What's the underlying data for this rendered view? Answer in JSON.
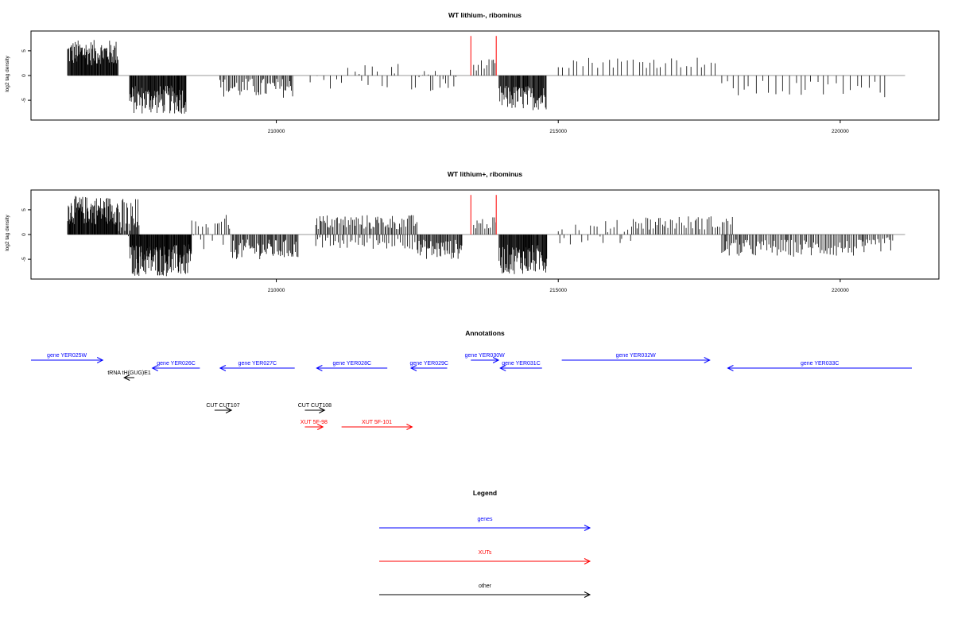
{
  "chart_data": [
    {
      "type": "bar",
      "title": "WT lithium-, ribominus",
      "ylabel": "log2 tag density",
      "xlim": [
        205650,
        221750
      ],
      "ylim": [
        -9,
        9
      ],
      "xticks": [
        210000,
        215000,
        220000
      ],
      "yticks": [
        -5,
        0,
        5
      ],
      "red_bars": [
        {
          "x": 213450,
          "y": 8
        },
        {
          "x": 213900,
          "y": 8
        }
      ],
      "regions": [
        {
          "start": 206300,
          "end": 207200,
          "min": 2,
          "max": 7.2,
          "step": 10
        },
        {
          "start": 206600,
          "end": 206950,
          "min": 1,
          "max": 6,
          "step": 40
        },
        {
          "start": 207400,
          "end": 208400,
          "min": -7.8,
          "max": -2,
          "step": 10
        },
        {
          "start": 209000,
          "end": 210300,
          "min": -4.5,
          "max": -0.5,
          "step": 25
        },
        {
          "start": 210600,
          "end": 211400,
          "min": -3,
          "max": 2,
          "step": 90
        },
        {
          "start": 211400,
          "end": 212200,
          "min": -3,
          "max": 3,
          "step": 70
        },
        {
          "start": 212400,
          "end": 213200,
          "min": -4,
          "max": 1.5,
          "step": 50
        },
        {
          "start": 213500,
          "end": 213900,
          "min": 1,
          "max": 3.3,
          "step": 40
        },
        {
          "start": 213950,
          "end": 214800,
          "min": -7,
          "max": -2,
          "step": 12
        },
        {
          "start": 215000,
          "end": 217800,
          "min": 1.5,
          "max": 3.8,
          "step": 90
        },
        {
          "start": 217900,
          "end": 220900,
          "min": -4.5,
          "max": -1,
          "step": 110
        }
      ]
    },
    {
      "type": "bar",
      "title": "WT lithium+, ribominus",
      "ylabel": "log2 tag density",
      "xlim": [
        205650,
        221750
      ],
      "ylim": [
        -9,
        9
      ],
      "xticks": [
        210000,
        215000,
        220000
      ],
      "yticks": [
        -5,
        0,
        5
      ],
      "red_bars": [
        {
          "x": 213450,
          "y": 8
        },
        {
          "x": 213900,
          "y": 8
        }
      ],
      "regions": [
        {
          "start": 206300,
          "end": 207200,
          "min": 2,
          "max": 7.8,
          "step": 9
        },
        {
          "start": 207200,
          "end": 207600,
          "min": -2,
          "max": 7.5,
          "step": 15
        },
        {
          "start": 207400,
          "end": 208500,
          "min": -8.5,
          "max": -2,
          "step": 9
        },
        {
          "start": 208500,
          "end": 209200,
          "min": -4,
          "max": 4,
          "step": 35
        },
        {
          "start": 209200,
          "end": 210400,
          "min": -5,
          "max": -1,
          "step": 18
        },
        {
          "start": 210700,
          "end": 212500,
          "min": 1,
          "max": 4,
          "step": 25
        },
        {
          "start": 210700,
          "end": 212500,
          "min": -3,
          "max": -0.5,
          "step": 45
        },
        {
          "start": 212500,
          "end": 213300,
          "min": -5,
          "max": -1,
          "step": 15
        },
        {
          "start": 213500,
          "end": 213900,
          "min": 1,
          "max": 3.5,
          "step": 35
        },
        {
          "start": 213950,
          "end": 214800,
          "min": -8,
          "max": -2,
          "step": 10
        },
        {
          "start": 215000,
          "end": 216300,
          "min": -2,
          "max": 3,
          "step": 45
        },
        {
          "start": 216300,
          "end": 218100,
          "min": 1,
          "max": 3.8,
          "step": 35
        },
        {
          "start": 217900,
          "end": 220600,
          "min": -4.5,
          "max": -1,
          "step": 25
        },
        {
          "start": 220600,
          "end": 220950,
          "min": -3.5,
          "max": -0.5,
          "step": 30
        }
      ]
    }
  ],
  "annotations": {
    "title": "Annotations",
    "features": [
      {
        "label": "gene YER025W",
        "start": 205650,
        "end": 206920,
        "dir": 1,
        "row": 0,
        "color": "#0000ff"
      },
      {
        "label": "gene YER026C",
        "start": 207800,
        "end": 208640,
        "dir": -1,
        "row": 1,
        "color": "#0000ff"
      },
      {
        "label": "tRNA tH(GUG)E1",
        "start": 207300,
        "end": 207480,
        "dir": -1,
        "row": 2,
        "color": "#000000"
      },
      {
        "label": "gene YER027C",
        "start": 209000,
        "end": 210320,
        "dir": -1,
        "row": 1,
        "color": "#0000ff"
      },
      {
        "label": "gene YER028C",
        "start": 210710,
        "end": 211960,
        "dir": -1,
        "row": 1,
        "color": "#0000ff"
      },
      {
        "label": "gene YER029C",
        "start": 212380,
        "end": 213020,
        "dir": -1,
        "row": 1,
        "color": "#0000ff"
      },
      {
        "label": "gene YER030W",
        "start": 213440,
        "end": 213930,
        "dir": 1,
        "row": 0,
        "color": "#0000ff"
      },
      {
        "label": "gene YER031C",
        "start": 213960,
        "end": 214700,
        "dir": -1,
        "row": 1,
        "color": "#0000ff"
      },
      {
        "label": "gene YER032W",
        "start": 215050,
        "end": 217670,
        "dir": 1,
        "row": 0,
        "color": "#0000ff"
      },
      {
        "label": "gene YER033C",
        "start": 217990,
        "end": 221250,
        "dir": -1,
        "row": 1,
        "color": "#0000ff"
      },
      {
        "label": "CUT CUT107",
        "start": 208900,
        "end": 209200,
        "dir": 1,
        "row": 4,
        "color": "#000000"
      },
      {
        "label": "CUT CUT108",
        "start": 210500,
        "end": 210850,
        "dir": 1,
        "row": 4,
        "color": "#000000"
      },
      {
        "label": "XUT 5F-98",
        "start": 210500,
        "end": 210820,
        "dir": 1,
        "row": 5,
        "color": "#ff0000"
      },
      {
        "label": "XUT 5F-101",
        "start": 211150,
        "end": 212400,
        "dir": 1,
        "row": 5,
        "color": "#ff0000"
      }
    ]
  },
  "legend": {
    "title": "Legend",
    "items": [
      {
        "label": "genes",
        "color": "#0000ff"
      },
      {
        "label": "XUTs",
        "color": "#ff0000"
      },
      {
        "label": "other",
        "color": "#000000"
      }
    ]
  }
}
